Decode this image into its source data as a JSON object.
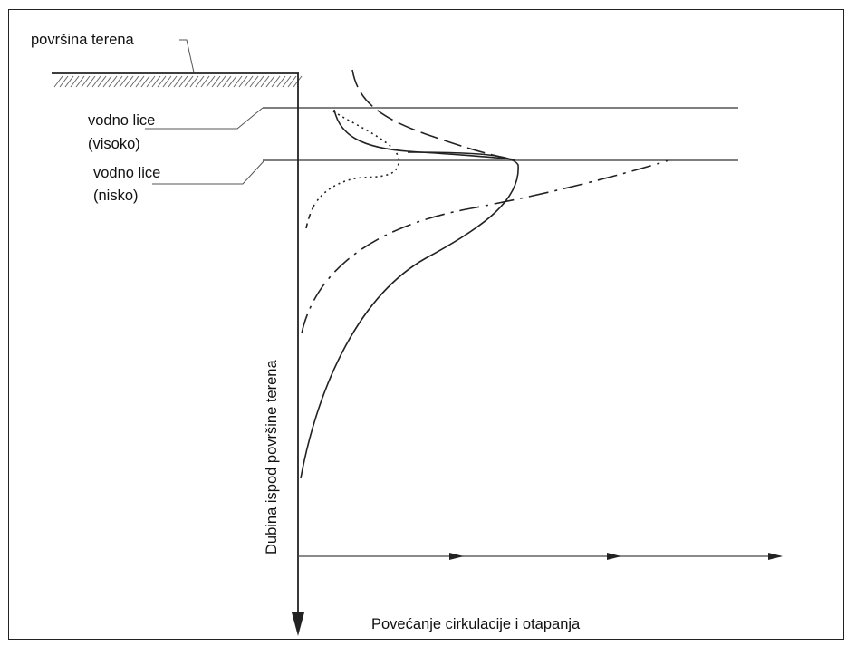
{
  "labels": {
    "ground_surface": "površina terena",
    "water_table_high_line1": "vodno lice",
    "water_table_high_line2": "(visoko)",
    "water_table_low_line1": "vodno lice",
    "water_table_low_line2": "(nisko)",
    "y_axis": "Dubina ispod površine terena",
    "x_axis": "Povećanje cirkulacije i otapanja"
  },
  "colors": {
    "line": "#222222",
    "hatch": "#555555",
    "background": "#ffffff"
  },
  "line_styles": {
    "solid_curves": "solid",
    "dashed_curve_a": "long-dash",
    "dashed_curve_b": "dash-dot",
    "dotted_curve": "dotted"
  }
}
